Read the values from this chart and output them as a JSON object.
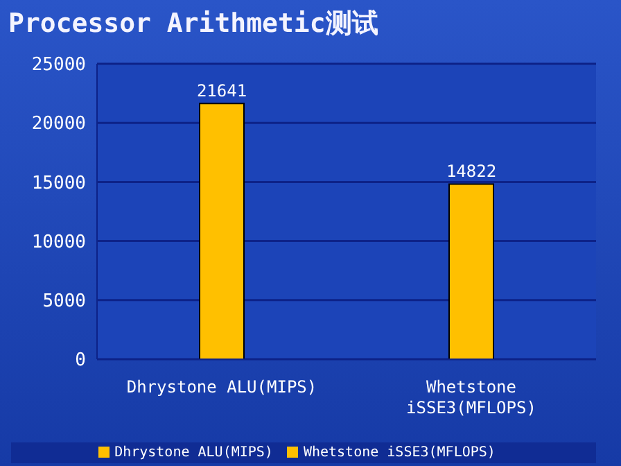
{
  "chart_data": {
    "type": "bar",
    "title": "Processor Arithmetic测试",
    "categories": [
      "Dhrystone ALU(MIPS)",
      "Whetstone iSSE3(MFLOPS)"
    ],
    "series": [
      {
        "name": "Dhrystone ALU(MIPS)",
        "color": "#ffc000",
        "values": [
          21641,
          null
        ]
      },
      {
        "name": "Whetstone iSSE3(MFLOPS)",
        "color": "#ffc000",
        "values": [
          null,
          14822
        ]
      }
    ],
    "ylim": [
      0,
      25000
    ],
    "yticks": [
      0,
      5000,
      10000,
      15000,
      20000,
      25000
    ],
    "grid": "y",
    "legend": "bottom",
    "data_labels": true
  }
}
